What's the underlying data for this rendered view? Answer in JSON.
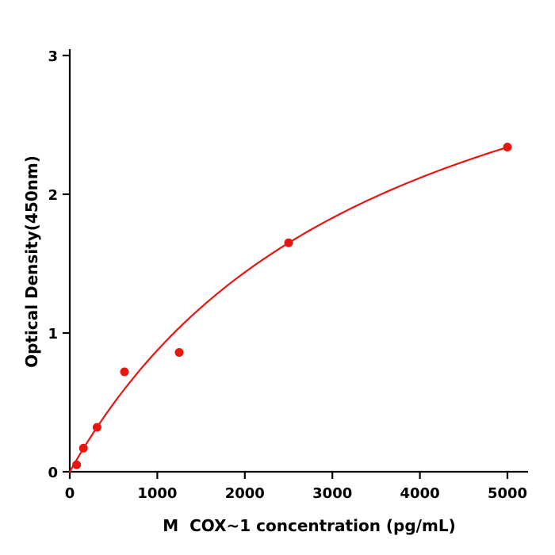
{
  "colors": {
    "accent": "#e8160f",
    "axis": "#000000",
    "background": "#ffffff"
  },
  "chart_data": {
    "type": "scatter",
    "title": "",
    "xlabel": "M  COX~1 concentration (pg/mL)",
    "ylabel": "Optical Density(450nm)",
    "x": [
      78,
      156,
      312,
      625,
      1250,
      2500,
      5000
    ],
    "y": [
      0.05,
      0.17,
      0.32,
      0.72,
      0.86,
      1.65,
      2.34
    ],
    "x_ticks": [
      0,
      1000,
      2000,
      3000,
      4000,
      5000
    ],
    "y_ticks": [
      0,
      1,
      2,
      3
    ],
    "xlim": [
      0,
      5200
    ],
    "ylim": [
      0,
      3
    ],
    "grid": false,
    "legend": "none",
    "curve": {
      "type": "michaelis_menten",
      "vmax": 4.02,
      "km": 3593,
      "x_range": [
        0,
        5000
      ]
    }
  }
}
